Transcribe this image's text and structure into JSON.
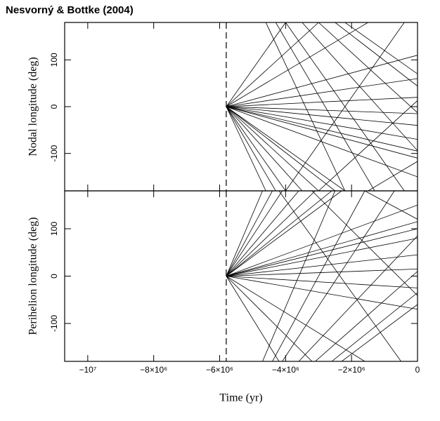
{
  "chart_data": [
    {
      "type": "line",
      "title": "Nesvorný & Bottke (2004)",
      "ylabel": "Nodal longitude (deg)",
      "xlim": [
        -10700000,
        0
      ],
      "ylim": [
        -180,
        180
      ],
      "yticks": [
        -100,
        0,
        100
      ],
      "vline": -5800000,
      "color": "#000000",
      "lines": [
        {
          "x": [
            -5800000,
            -4600000
          ],
          "y": [
            0,
            -180
          ]
        },
        {
          "x": [
            -5800000,
            -4300000
          ],
          "y": [
            0,
            -180
          ]
        },
        {
          "x": [
            -5800000,
            -4000000
          ],
          "y": [
            0,
            -180
          ]
        },
        {
          "x": [
            -5800000,
            -3500000
          ],
          "y": [
            0,
            -180
          ]
        },
        {
          "x": [
            -5800000,
            -3000000
          ],
          "y": [
            0,
            -180
          ]
        },
        {
          "x": [
            -5800000,
            -2500000
          ],
          "y": [
            0,
            -180
          ]
        },
        {
          "x": [
            -5800000,
            -2200000
          ],
          "y": [
            0,
            -180
          ]
        },
        {
          "x": [
            -5800000,
            0
          ],
          "y": [
            0,
            -150
          ]
        },
        {
          "x": [
            -5800000,
            0
          ],
          "y": [
            0,
            -110
          ]
        },
        {
          "x": [
            -5800000,
            0
          ],
          "y": [
            0,
            -95
          ]
        },
        {
          "x": [
            -5800000,
            0
          ],
          "y": [
            0,
            -70
          ]
        },
        {
          "x": [
            -5800000,
            0
          ],
          "y": [
            0,
            -40
          ]
        },
        {
          "x": [
            -5800000,
            0
          ],
          "y": [
            0,
            -15
          ]
        },
        {
          "x": [
            -5800000,
            0
          ],
          "y": [
            0,
            20
          ]
        },
        {
          "x": [
            -5800000,
            0
          ],
          "y": [
            0,
            60
          ]
        },
        {
          "x": [
            -5800000,
            0
          ],
          "y": [
            0,
            110
          ]
        },
        {
          "x": [
            -5800000,
            -1500000
          ],
          "y": [
            0,
            180
          ]
        },
        {
          "x": [
            -5800000,
            -3000000
          ],
          "y": [
            0,
            180
          ]
        },
        {
          "x": [
            -5800000,
            -4000000
          ],
          "y": [
            0,
            180
          ]
        },
        {
          "x": [
            -4600000,
            -2200000
          ],
          "y": [
            180,
            -180
          ]
        },
        {
          "x": [
            -4300000,
            -1300000
          ],
          "y": [
            180,
            -180
          ]
        },
        {
          "x": [
            -4000000,
            -400000
          ],
          "y": [
            180,
            -180
          ]
        },
        {
          "x": [
            -3500000,
            0
          ],
          "y": [
            180,
            -94
          ]
        },
        {
          "x": [
            -3000000,
            0
          ],
          "y": [
            180,
            -13
          ]
        },
        {
          "x": [
            -2500000,
            0
          ],
          "y": [
            180,
            44
          ]
        },
        {
          "x": [
            -2200000,
            0
          ],
          "y": [
            180,
            70
          ]
        },
        {
          "x": [
            -1500000,
            0
          ],
          "y": [
            -180,
            -117
          ]
        },
        {
          "x": [
            -3000000,
            0
          ],
          "y": [
            -180,
            13
          ]
        },
        {
          "x": [
            -4000000,
            -400000
          ],
          "y": [
            -180,
            180
          ]
        }
      ]
    },
    {
      "type": "line",
      "ylabel": "Perihelion longitude (deg)",
      "xlabel": "Time (yr)",
      "xlim": [
        -10700000,
        0
      ],
      "ylim": [
        -180,
        180
      ],
      "yticks": [
        -100,
        0,
        100
      ],
      "vline": -5800000,
      "color": "#000000",
      "xticks": [
        {
          "value": -10000000,
          "label": "−10⁷"
        },
        {
          "value": -8000000,
          "label": "−8×10⁶"
        },
        {
          "value": -6000000,
          "label": "−6×10⁶"
        },
        {
          "value": -4000000,
          "label": "−4×10⁶"
        },
        {
          "value": -2000000,
          "label": "−2×10⁶"
        },
        0
      ],
      "lines": [
        {
          "x": [
            -5800000,
            -4700000
          ],
          "y": [
            0,
            180
          ]
        },
        {
          "x": [
            -5800000,
            -4400000
          ],
          "y": [
            0,
            180
          ]
        },
        {
          "x": [
            -5800000,
            -4100000
          ],
          "y": [
            0,
            180
          ]
        },
        {
          "x": [
            -5800000,
            -3600000
          ],
          "y": [
            0,
            180
          ]
        },
        {
          "x": [
            -5800000,
            -3100000
          ],
          "y": [
            0,
            180
          ]
        },
        {
          "x": [
            -5800000,
            -2600000
          ],
          "y": [
            0,
            180
          ]
        },
        {
          "x": [
            -5800000,
            -2300000
          ],
          "y": [
            0,
            180
          ]
        },
        {
          "x": [
            -5800000,
            0
          ],
          "y": [
            0,
            150
          ]
        },
        {
          "x": [
            -5800000,
            0
          ],
          "y": [
            0,
            115
          ]
        },
        {
          "x": [
            -5800000,
            0
          ],
          "y": [
            0,
            100
          ]
        },
        {
          "x": [
            -5800000,
            0
          ],
          "y": [
            0,
            80
          ]
        },
        {
          "x": [
            -5800000,
            0
          ],
          "y": [
            0,
            45
          ]
        },
        {
          "x": [
            -5800000,
            0
          ],
          "y": [
            0,
            15
          ]
        },
        {
          "x": [
            -5800000,
            0
          ],
          "y": [
            0,
            -25
          ]
        },
        {
          "x": [
            -5800000,
            0
          ],
          "y": [
            0,
            -70
          ]
        },
        {
          "x": [
            -5800000,
            -1600000
          ],
          "y": [
            0,
            -180
          ]
        },
        {
          "x": [
            -5800000,
            -3200000
          ],
          "y": [
            0,
            -180
          ]
        },
        {
          "x": [
            -5800000,
            -4200000
          ],
          "y": [
            0,
            -180
          ]
        },
        {
          "x": [
            -4700000,
            -2500000
          ],
          "y": [
            -180,
            180
          ]
        },
        {
          "x": [
            -4400000,
            -1600000
          ],
          "y": [
            -180,
            180
          ]
        },
        {
          "x": [
            -4100000,
            -700000
          ],
          "y": [
            -180,
            180
          ]
        },
        {
          "x": [
            -3600000,
            0
          ],
          "y": [
            -180,
            85
          ]
        },
        {
          "x": [
            -3100000,
            0
          ],
          "y": [
            -180,
            10
          ]
        },
        {
          "x": [
            -2600000,
            0
          ],
          "y": [
            -180,
            -35
          ]
        },
        {
          "x": [
            -2300000,
            0
          ],
          "y": [
            -180,
            -60
          ]
        },
        {
          "x": [
            -1600000,
            0
          ],
          "y": [
            180,
            120
          ]
        },
        {
          "x": [
            -3200000,
            0
          ],
          "y": [
            180,
            -41
          ]
        },
        {
          "x": [
            -4200000,
            -500000
          ],
          "y": [
            180,
            -180
          ]
        }
      ]
    }
  ]
}
